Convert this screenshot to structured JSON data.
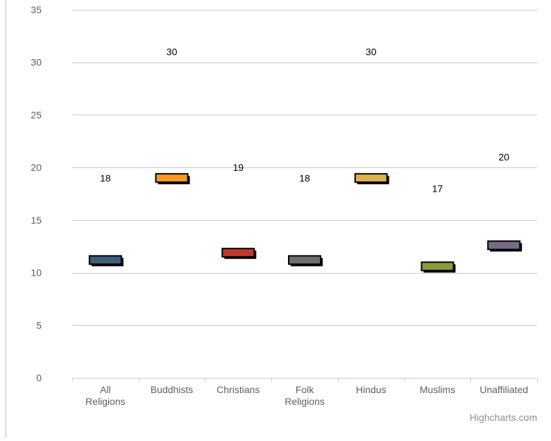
{
  "chart_data": {
    "type": "bar",
    "chart_kind": "floating range markers with value labels",
    "categories": [
      "All Religions",
      "Buddhists",
      "Christians",
      "Folk Religions",
      "Hindus",
      "Muslims",
      "Unaffiliated"
    ],
    "category_lines": [
      [
        "All",
        "Religions"
      ],
      [
        "Buddhists"
      ],
      [
        "Christians"
      ],
      [
        "Folk",
        "Religions"
      ],
      [
        "Hindus"
      ],
      [
        "Muslims"
      ],
      [
        "Unaffiliated"
      ]
    ],
    "series": [
      {
        "name": "",
        "values": [
          11.2,
          19.0,
          11.9,
          11.2,
          19.0,
          10.6,
          12.6
        ],
        "colors": [
          "#3d5e7a",
          "#f39a24",
          "#c0392b",
          "#6e6e6e",
          "#dcb24e",
          "#8f9a3a",
          "#7b6a86"
        ]
      }
    ],
    "data_labels": [
      "18",
      "30",
      "19",
      "18",
      "30",
      "17",
      "20"
    ],
    "data_label_positions": [
      19,
      31,
      20,
      19,
      31,
      18,
      21
    ],
    "title": "",
    "xlabel": "",
    "ylabel": "",
    "ylim": [
      0,
      35
    ],
    "yticks": [
      0,
      5,
      10,
      15,
      20,
      25,
      30,
      35
    ],
    "grid": true,
    "legend": "none",
    "credit": "Highcharts.com"
  }
}
